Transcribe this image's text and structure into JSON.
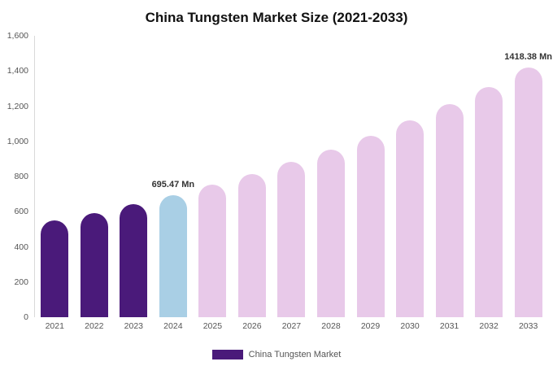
{
  "title": "China Tungsten Market Size (2021-2033)",
  "legend": {
    "label": "China Tungsten Market",
    "color": "#4a1a7a"
  },
  "colors": {
    "historical": "#4a1a7a",
    "base_year": "#a9cfe5",
    "forecast": "#e8c9e9"
  },
  "chart_data": {
    "type": "bar",
    "title": "China Tungsten Market Size (2021-2033)",
    "xlabel": "",
    "ylabel": "",
    "ylim": [
      0,
      1600
    ],
    "grid": false,
    "legend_position": "bottom",
    "categories": [
      "2021",
      "2022",
      "2023",
      "2024",
      "2025",
      "2026",
      "2027",
      "2028",
      "2029",
      "2030",
      "2031",
      "2032",
      "2033"
    ],
    "values": [
      548.5,
      593.7,
      642.6,
      695.47,
      752.8,
      814.8,
      881.9,
      954.6,
      1033.2,
      1118.3,
      1210.4,
      1310.1,
      1418.38
    ],
    "bar_colors": [
      "#4a1a7a",
      "#4a1a7a",
      "#4a1a7a",
      "#a9cfe5",
      "#e8c9e9",
      "#e8c9e9",
      "#e8c9e9",
      "#e8c9e9",
      "#e8c9e9",
      "#e8c9e9",
      "#e8c9e9",
      "#e8c9e9",
      "#e8c9e9"
    ],
    "ytick_values": [
      0,
      200,
      400,
      600,
      800,
      1000,
      1200,
      1400,
      1600
    ],
    "ytick_labels": [
      "0",
      "200",
      "400",
      "600",
      "800",
      "1,000",
      "1,200",
      "1,400",
      "1,600"
    ],
    "annotations": [
      {
        "index": 3,
        "label": "695.47 Mn"
      },
      {
        "index": 12,
        "label": "1418.38 Mn"
      }
    ],
    "series": [
      {
        "name": "China Tungsten Market",
        "values": [
          548.5,
          593.7,
          642.6,
          695.47,
          752.8,
          814.8,
          881.9,
          954.6,
          1033.2,
          1118.3,
          1210.4,
          1310.1,
          1418.38
        ]
      }
    ]
  }
}
